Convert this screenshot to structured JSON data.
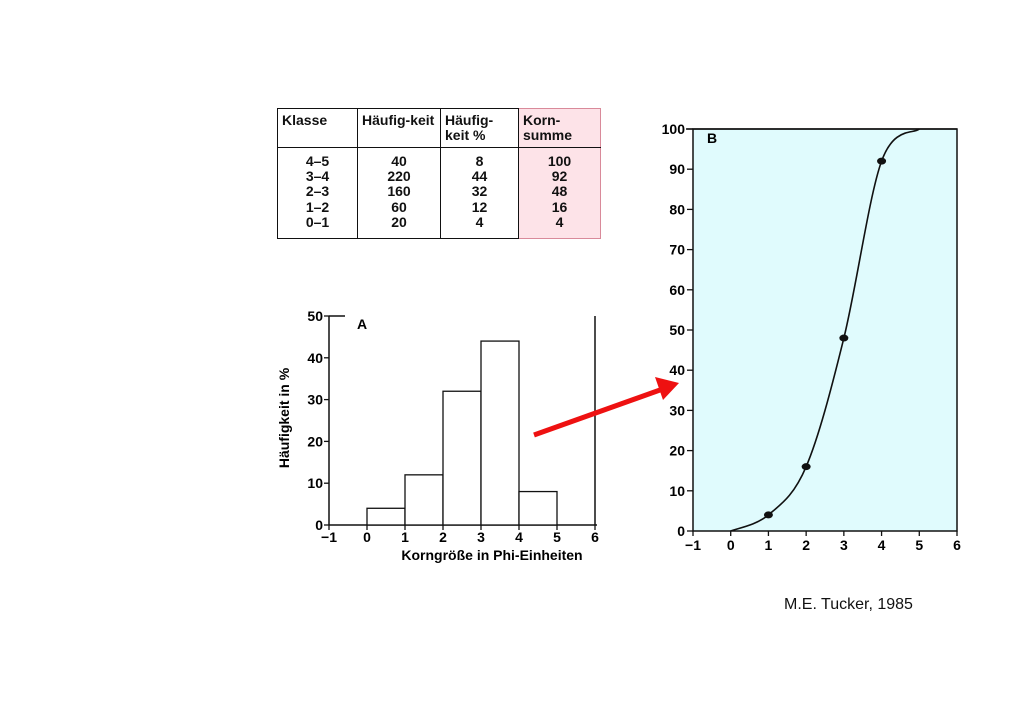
{
  "table": {
    "headers": [
      "Klasse",
      "Häufig-keit",
      "Häufig-keit %",
      "Korn-summe"
    ],
    "rows": [
      [
        "4–5",
        "40",
        "8",
        "100"
      ],
      [
        "3–4",
        "220",
        "44",
        "92"
      ],
      [
        "2–3",
        "160",
        "32",
        "48"
      ],
      [
        "1–2",
        "60",
        "12",
        "16"
      ],
      [
        "0–1",
        "20",
        "4",
        "4"
      ]
    ],
    "highlight_color": "#fde3e8"
  },
  "chart_data": [
    {
      "type": "bar",
      "panel_label": "A",
      "xlabel": "Korngröße in Phi-Einheiten",
      "ylabel": "Häufigkeit in %",
      "xlim": [
        -1,
        6
      ],
      "ylim": [
        0,
        50
      ],
      "x_ticks": [
        "−1",
        "0",
        "1",
        "2",
        "3",
        "4",
        "5",
        "6"
      ],
      "y_ticks": [
        "0",
        "10",
        "20",
        "30",
        "40",
        "50"
      ],
      "bins": [
        [
          0,
          1
        ],
        [
          1,
          2
        ],
        [
          2,
          3
        ],
        [
          3,
          4
        ],
        [
          4,
          5
        ]
      ],
      "values": [
        4,
        12,
        32,
        44,
        8
      ]
    },
    {
      "type": "line",
      "panel_label": "B",
      "xlim": [
        -1,
        6
      ],
      "ylim": [
        0,
        100
      ],
      "x_ticks": [
        "−1",
        "0",
        "1",
        "2",
        "3",
        "4",
        "5",
        "6"
      ],
      "y_ticks": [
        "0",
        "10",
        "20",
        "30",
        "40",
        "50",
        "60",
        "70",
        "80",
        "90",
        "100"
      ],
      "points": [
        [
          1,
          4
        ],
        [
          2,
          16
        ],
        [
          3,
          48
        ],
        [
          4,
          92
        ]
      ],
      "curve": [
        [
          0,
          0
        ],
        [
          1,
          4
        ],
        [
          2,
          16
        ],
        [
          3,
          48
        ],
        [
          4,
          92
        ],
        [
          5,
          100
        ]
      ],
      "background": "#e0fbfd"
    }
  ],
  "arrow_color": "#ee1111",
  "credit": "M.E. Tucker, 1985"
}
